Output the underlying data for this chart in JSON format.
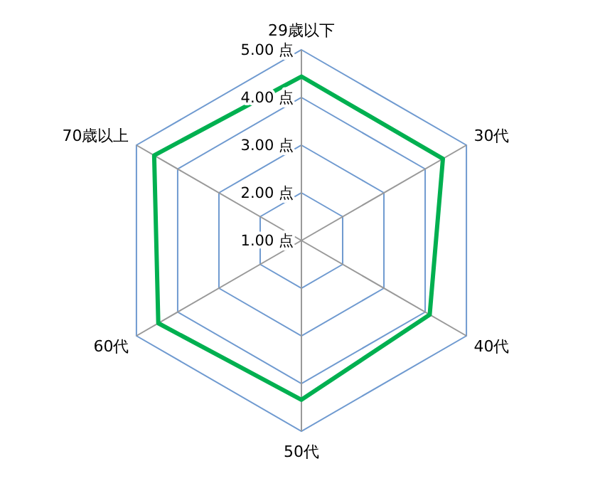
{
  "chart_data": {
    "type": "radar",
    "categories": [
      "29歳以下",
      "30代",
      "40代",
      "50代",
      "60代",
      "70歳以上"
    ],
    "ylim": [
      1,
      5
    ],
    "yticks": [
      {
        "value": 1,
        "label": "1.00 点"
      },
      {
        "value": 2,
        "label": "2.00 点"
      },
      {
        "value": 3,
        "label": "3.00 点"
      },
      {
        "value": 4,
        "label": "4.00 点"
      },
      {
        "value": 5,
        "label": "5.00 点"
      }
    ],
    "grid": true,
    "series": [
      {
        "color": "#00b050",
        "values": [
          4.44,
          4.43,
          4.11,
          4.34,
          4.47,
          4.57
        ]
      }
    ]
  }
}
